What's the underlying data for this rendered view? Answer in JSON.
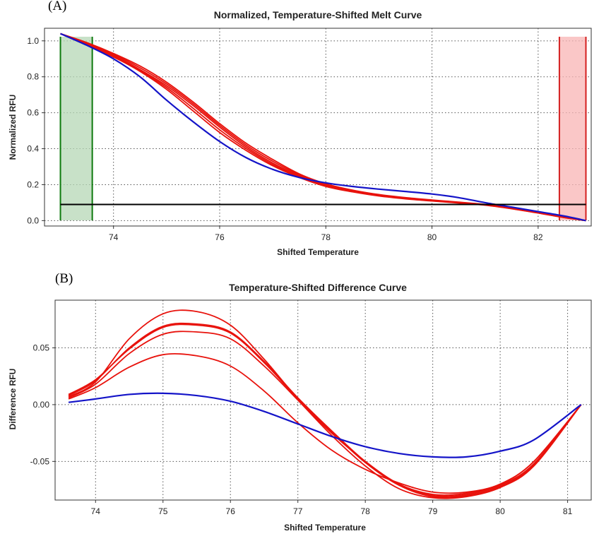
{
  "panels": {
    "a_label": "(A)",
    "b_label": "(B)"
  },
  "colors": {
    "samples": "#e8120c",
    "reference": "#1414c8",
    "threshold": "#000000",
    "start_region_fill": "#b5d7b5",
    "start_region_edge": "#0e7a0e",
    "end_region_fill": "#f8b4b4",
    "end_region_edge": "#d42020"
  },
  "chart_data": [
    {
      "type": "line",
      "title": "Normalized, Temperature-Shifted Melt Curve",
      "xlabel": "Shifted Temperature",
      "ylabel": "Normalized RFU",
      "xlim": [
        72.7,
        83.0
      ],
      "ylim": [
        -0.03,
        1.07
      ],
      "xticks": [
        74,
        76,
        78,
        80,
        82
      ],
      "yticks": [
        0.0,
        0.2,
        0.4,
        0.6,
        0.8,
        1.0
      ],
      "xtick_labels": [
        "74",
        "76",
        "78",
        "80",
        "82"
      ],
      "ytick_labels": [
        "0.0",
        "0.2",
        "0.4",
        "0.6",
        "0.8",
        "1.0"
      ],
      "grid": true,
      "regions": [
        {
          "x_start": 73.0,
          "x_end": 73.6,
          "color": "green"
        },
        {
          "x_start": 82.4,
          "x_end": 82.9,
          "color": "red"
        }
      ],
      "threshold": {
        "y": 0.09,
        "x_start": 73.0,
        "x_end": 82.9
      },
      "x": [
        73.0,
        73.5,
        74.0,
        74.5,
        75.0,
        75.5,
        76.0,
        76.5,
        77.0,
        77.5,
        78.0,
        78.5,
        79.0,
        79.5,
        80.0,
        80.5,
        81.0,
        81.5,
        82.0,
        82.5,
        82.9
      ],
      "series": [
        {
          "color": "red",
          "values": [
            1.04,
            0.99,
            0.93,
            0.86,
            0.77,
            0.66,
            0.54,
            0.43,
            0.34,
            0.26,
            0.205,
            0.17,
            0.145,
            0.128,
            0.115,
            0.103,
            0.09,
            0.07,
            0.045,
            0.018,
            0.0
          ]
        },
        {
          "color": "red",
          "values": [
            1.04,
            0.985,
            0.925,
            0.85,
            0.76,
            0.65,
            0.53,
            0.42,
            0.33,
            0.255,
            0.2,
            0.168,
            0.143,
            0.126,
            0.113,
            0.101,
            0.089,
            0.069,
            0.044,
            0.018,
            0.0
          ]
        },
        {
          "color": "red",
          "values": [
            1.04,
            0.98,
            0.92,
            0.84,
            0.75,
            0.64,
            0.52,
            0.41,
            0.32,
            0.25,
            0.198,
            0.165,
            0.14,
            0.124,
            0.111,
            0.1,
            0.088,
            0.068,
            0.043,
            0.017,
            0.0
          ]
        },
        {
          "color": "red",
          "values": [
            1.04,
            0.978,
            0.915,
            0.835,
            0.74,
            0.625,
            0.505,
            0.4,
            0.312,
            0.245,
            0.195,
            0.163,
            0.139,
            0.123,
            0.11,
            0.099,
            0.087,
            0.067,
            0.043,
            0.017,
            0.0
          ]
        },
        {
          "color": "red",
          "values": [
            1.04,
            0.975,
            0.91,
            0.83,
            0.73,
            0.61,
            0.49,
            0.39,
            0.305,
            0.24,
            0.19,
            0.16,
            0.137,
            0.121,
            0.109,
            0.098,
            0.086,
            0.066,
            0.042,
            0.016,
            0.0
          ]
        },
        {
          "color": "blue",
          "values": [
            1.04,
            0.975,
            0.9,
            0.8,
            0.67,
            0.55,
            0.44,
            0.35,
            0.285,
            0.24,
            0.21,
            0.19,
            0.175,
            0.162,
            0.148,
            0.128,
            0.1,
            0.075,
            0.05,
            0.025,
            0.0
          ]
        }
      ]
    },
    {
      "type": "line",
      "title": "Temperature-Shifted Difference Curve",
      "xlabel": "Shifted Temperature",
      "ylabel": "Difference RFU",
      "xlim": [
        73.4,
        81.35
      ],
      "ylim": [
        -0.084,
        0.092
      ],
      "xticks": [
        74,
        75,
        76,
        77,
        78,
        79,
        80,
        81
      ],
      "yticks": [
        -0.05,
        0.0,
        0.05
      ],
      "xtick_labels": [
        "74",
        "75",
        "76",
        "77",
        "78",
        "79",
        "80",
        "81"
      ],
      "ytick_labels": [
        "-0.05",
        "0.00",
        "0.05"
      ],
      "grid": true,
      "x": [
        73.6,
        74.0,
        74.5,
        75.0,
        75.5,
        76.0,
        76.5,
        77.0,
        77.5,
        78.0,
        78.5,
        79.0,
        79.5,
        80.0,
        80.5,
        81.2
      ],
      "series": [
        {
          "color": "red",
          "values": [
            0.007,
            0.02,
            0.058,
            0.08,
            0.082,
            0.07,
            0.04,
            0.005,
            -0.025,
            -0.05,
            -0.07,
            -0.079,
            -0.078,
            -0.07,
            -0.05,
            0.0
          ]
        },
        {
          "color": "red",
          "values": [
            0.008,
            0.021,
            0.05,
            0.069,
            0.071,
            0.064,
            0.038,
            0.006,
            -0.023,
            -0.05,
            -0.07,
            -0.08,
            -0.079,
            -0.071,
            -0.052,
            0.0
          ]
        },
        {
          "color": "red",
          "values": [
            0.009,
            0.022,
            0.049,
            0.068,
            0.07,
            0.063,
            0.037,
            0.005,
            -0.024,
            -0.051,
            -0.071,
            -0.081,
            -0.08,
            -0.072,
            -0.053,
            0.0
          ]
        },
        {
          "color": "red",
          "values": [
            0.006,
            0.018,
            0.045,
            0.062,
            0.064,
            0.058,
            0.034,
            0.004,
            -0.027,
            -0.054,
            -0.074,
            -0.082,
            -0.081,
            -0.073,
            -0.054,
            0.0
          ]
        },
        {
          "color": "red",
          "values": [
            0.005,
            0.015,
            0.033,
            0.044,
            0.043,
            0.034,
            0.012,
            -0.016,
            -0.04,
            -0.057,
            -0.069,
            -0.077,
            -0.077,
            -0.07,
            -0.05,
            0.0
          ]
        },
        {
          "color": "blue",
          "values": [
            0.002,
            0.005,
            0.009,
            0.01,
            0.008,
            0.003,
            -0.006,
            -0.017,
            -0.028,
            -0.037,
            -0.043,
            -0.046,
            -0.046,
            -0.041,
            -0.031,
            0.0
          ]
        }
      ]
    }
  ]
}
